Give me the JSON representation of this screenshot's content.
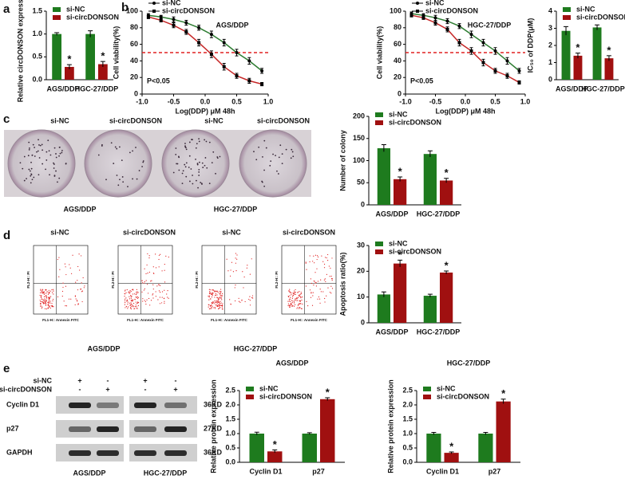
{
  "panel_labels": [
    "a",
    "b",
    "c",
    "d",
    "e"
  ],
  "chart_data": [
    {
      "type": "bar",
      "ylabel": "Relative circDONSON expression",
      "categories": [
        "AGS/DDP",
        "HGC-27/DDP"
      ],
      "series": [
        {
          "name": "si-NC",
          "color": "#1e7b1e",
          "values": [
            1.0,
            1.0
          ],
          "errors": [
            0.03,
            0.07
          ]
        },
        {
          "name": "si-circDONSON",
          "color": "#a01010",
          "values": [
            0.28,
            0.34
          ],
          "errors": [
            0.05,
            0.06
          ],
          "significance": [
            "*",
            "*"
          ]
        }
      ],
      "ylim": [
        0,
        1.5
      ],
      "yticks": [
        {
          "value": 0,
          "label": "0.0"
        },
        {
          "value": 0.5,
          "label": "0.5"
        },
        {
          "value": 1,
          "label": "1.0"
        },
        {
          "value": 1.5,
          "label": "1.5"
        }
      ],
      "legend": "upper left"
    },
    {
      "type": "line",
      "title": "AGS/DDP",
      "xlabel": "Log(DDP) μM 48h",
      "ylabel": "Cell viability(%)",
      "annotation": "P<0.05",
      "x": [
        -0.9,
        -0.7,
        -0.5,
        -0.3,
        -0.1,
        0.1,
        0.3,
        0.5,
        0.7,
        0.9
      ],
      "series": [
        {
          "name": "si-NC",
          "color": "#2e7d32",
          "values": [
            95,
            93,
            90,
            86,
            80,
            72,
            62,
            50,
            40,
            28
          ],
          "errors": [
            2,
            2,
            3,
            3,
            3,
            4,
            4,
            4,
            4,
            3
          ]
        },
        {
          "name": "si-circDONSON",
          "color": "#c62828",
          "values": [
            93,
            89,
            83,
            75,
            62,
            48,
            33,
            22,
            16,
            12
          ],
          "errors": [
            2,
            2,
            3,
            3,
            4,
            4,
            4,
            3,
            3,
            2
          ]
        }
      ],
      "xlim": [
        -1,
        1
      ],
      "xticks": [
        {
          "value": -1,
          "label": "-1.0"
        },
        {
          "value": -0.5,
          "label": "-0.5"
        },
        {
          "value": 0,
          "label": "0.0"
        },
        {
          "value": 0.5,
          "label": "0.5"
        },
        {
          "value": 1,
          "label": "1.0"
        }
      ],
      "ylim": [
        0,
        100
      ],
      "yticks": [
        0,
        20,
        40,
        60,
        80,
        100
      ],
      "reference_line": {
        "value": 50,
        "color": "#e02020"
      },
      "legend": "upper left"
    },
    {
      "type": "line",
      "title": "HGC-27/DDP",
      "xlabel": "Log(DDP) μM 48h",
      "ylabel": "Cell viability(%)",
      "annotation": "P<0.05",
      "x": [
        -0.9,
        -0.7,
        -0.5,
        -0.3,
        -0.1,
        0.1,
        0.3,
        0.5,
        0.7,
        0.9
      ],
      "series": [
        {
          "name": "si-NC",
          "color": "#2e7d32",
          "values": [
            97,
            95,
            92,
            88,
            82,
            72,
            62,
            52,
            40,
            28
          ],
          "errors": [
            2,
            2,
            3,
            3,
            3,
            4,
            4,
            4,
            4,
            3
          ]
        },
        {
          "name": "si-circDONSON",
          "color": "#c62828",
          "values": [
            95,
            92,
            86,
            78,
            62,
            52,
            38,
            28,
            22,
            14
          ],
          "errors": [
            2,
            2,
            3,
            3,
            4,
            4,
            4,
            3,
            3,
            2
          ]
        }
      ],
      "xlim": [
        -1,
        1
      ],
      "xticks": [
        {
          "value": -1,
          "label": "-1.0"
        },
        {
          "value": -0.5,
          "label": "-0.5"
        },
        {
          "value": 0,
          "label": "0.0"
        },
        {
          "value": 0.5,
          "label": "0.5"
        },
        {
          "value": 1,
          "label": "1.0"
        }
      ],
      "ylim": [
        0,
        100
      ],
      "yticks": [
        0,
        20,
        40,
        60,
        80,
        100
      ],
      "reference_line": {
        "value": 50,
        "color": "#e02020"
      },
      "legend": "upper left"
    },
    {
      "type": "bar",
      "ylabel": "IC₅₀ of DDP(μM)",
      "categories": [
        "AGS/DDP",
        "HGC-27/DDP"
      ],
      "series": [
        {
          "name": "si-NC",
          "color": "#1e7b1e",
          "values": [
            2.85,
            3.05
          ],
          "errors": [
            0.25,
            0.15
          ]
        },
        {
          "name": "si-circDONSON",
          "color": "#a01010",
          "values": [
            1.4,
            1.25
          ],
          "errors": [
            0.15,
            0.15
          ],
          "significance": [
            "*",
            "*"
          ]
        }
      ],
      "ylim": [
        0,
        4
      ],
      "yticks": [
        0,
        1,
        2,
        3,
        4
      ],
      "legend": "upper left"
    },
    {
      "type": "bar",
      "ylabel": "Number of colony",
      "categories": [
        "AGS/DDP",
        "HGC-27/DDP"
      ],
      "series": [
        {
          "name": "si-NC",
          "color": "#1e7b1e",
          "values": [
            128,
            115
          ],
          "errors": [
            8,
            7
          ]
        },
        {
          "name": "si-circDONSON",
          "color": "#a01010",
          "values": [
            58,
            55
          ],
          "errors": [
            5,
            5
          ],
          "significance": [
            "*",
            "*"
          ]
        }
      ],
      "ylim": [
        0,
        200
      ],
      "yticks": [
        0,
        50,
        100,
        150,
        200
      ],
      "legend": "upper left"
    },
    {
      "type": "bar",
      "ylabel": "Apoptosis ratio(%)",
      "categories": [
        "AGS/DDP",
        "HGC-27/DDP"
      ],
      "series": [
        {
          "name": "si-NC",
          "color": "#1e7b1e",
          "values": [
            11,
            10.5
          ],
          "errors": [
            1,
            0.6
          ]
        },
        {
          "name": "si-circDONSON",
          "color": "#a01010",
          "values": [
            23,
            19.5
          ],
          "errors": [
            1.3,
            0.6
          ],
          "significance": [
            "*",
            "*"
          ]
        }
      ],
      "ylim": [
        0,
        30
      ],
      "yticks": [
        0,
        10,
        20,
        30
      ],
      "legend": "upper left"
    },
    {
      "type": "bar",
      "title": "AGS/DDP",
      "ylabel": "Relative protein expression",
      "categories": [
        "Cyclin D1",
        "p27"
      ],
      "series": [
        {
          "name": "si-NC",
          "color": "#1e7b1e",
          "values": [
            1.0,
            1.0
          ],
          "errors": [
            0.05,
            0.03
          ]
        },
        {
          "name": "si-circDONSON",
          "color": "#a01010",
          "values": [
            0.38,
            2.2
          ],
          "errors": [
            0.05,
            0.05
          ],
          "significance": [
            "*",
            "*"
          ]
        }
      ],
      "ylim": [
        0,
        2.5
      ],
      "yticks": [
        {
          "value": 0,
          "label": "0.0"
        },
        {
          "value": 0.5,
          "label": "0.5"
        },
        {
          "value": 1,
          "label": "1.0"
        },
        {
          "value": 1.5,
          "label": "1.5"
        },
        {
          "value": 2,
          "label": "2.0"
        },
        {
          "value": 2.5,
          "label": "2.5"
        }
      ],
      "legend": "upper left"
    },
    {
      "type": "bar",
      "title": "HGC-27/DDP",
      "ylabel": "Relative protein expression",
      "categories": [
        "Cyclin D1",
        "p27"
      ],
      "series": [
        {
          "name": "si-NC",
          "color": "#1e7b1e",
          "values": [
            1.0,
            1.0
          ],
          "errors": [
            0.04,
            0.04
          ]
        },
        {
          "name": "si-circDONSON",
          "color": "#a01010",
          "values": [
            0.33,
            2.12
          ],
          "errors": [
            0.03,
            0.08
          ],
          "significance": [
            "*",
            "*"
          ]
        }
      ],
      "ylim": [
        0,
        2.5
      ],
      "yticks": [
        {
          "value": 0,
          "label": "0.0"
        },
        {
          "value": 0.5,
          "label": "0.5"
        },
        {
          "value": 1,
          "label": "1.0"
        },
        {
          "value": 1.5,
          "label": "1.5"
        },
        {
          "value": 2,
          "label": "2.0"
        },
        {
          "value": 2.5,
          "label": "2.5"
        }
      ],
      "legend": "upper left"
    }
  ],
  "colony": {
    "labels": [
      "si-NC",
      "si-circDONSON",
      "si-NC",
      "si-circDONSON"
    ],
    "groups": [
      "AGS/DDP",
      "HGC-27/DDP"
    ]
  },
  "flow": {
    "labels": [
      "si-NC",
      "si-circDONSON",
      "si-NC",
      "si-circDONSON"
    ],
    "x_axis": "FL1-H:: Annexin FITC",
    "y_axis": "FL2-H:: PI",
    "groups": [
      "AGS/DDP",
      "HGC-27/DDP"
    ]
  },
  "western_blot": {
    "rows": [
      "si-NC",
      "si-circDONSON"
    ],
    "signs": [
      [
        "+",
        "-",
        "+",
        "-"
      ],
      [
        "-",
        "+",
        "-",
        "+"
      ]
    ],
    "proteins": [
      "Cyclin D1",
      "p27",
      "GAPDH"
    ],
    "sizes": [
      "36KD",
      "27KD",
      "36KD"
    ],
    "groups": [
      "AGS/DDP",
      "HGC-27/DDP"
    ]
  }
}
